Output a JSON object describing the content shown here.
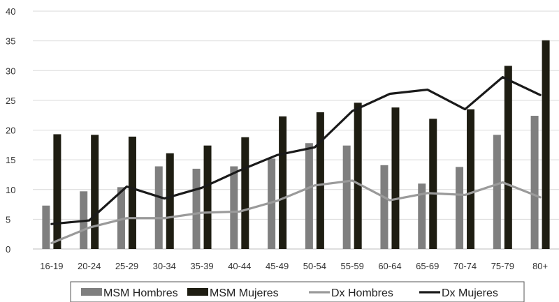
{
  "chart_data": {
    "type": "bar",
    "title": "",
    "xlabel": "",
    "ylabel": "",
    "ylim": [
      0,
      40
    ],
    "yticks": [
      0,
      5,
      10,
      15,
      20,
      25,
      30,
      35,
      40
    ],
    "grid": true,
    "legend_position": "bottom",
    "categories": [
      "16-19",
      "20-24",
      "25-29",
      "30-34",
      "35-39",
      "40-44",
      "45-49",
      "50-54",
      "55-59",
      "60-64",
      "65-69",
      "70-74",
      "75-79",
      "80+"
    ],
    "series": [
      {
        "name": "MSM Hombres",
        "kind": "bar",
        "color": "#7f7f7f",
        "values": [
          7.3,
          9.7,
          10.4,
          13.9,
          13.5,
          13.9,
          15.2,
          17.8,
          17.4,
          14.1,
          11.0,
          13.8,
          19.2,
          22.4
        ]
      },
      {
        "name": "MSM Mujeres",
        "kind": "bar",
        "color": "#1e1d12",
        "values": [
          19.3,
          19.2,
          18.9,
          16.1,
          17.4,
          18.8,
          22.3,
          23.0,
          24.6,
          23.8,
          21.9,
          23.5,
          30.8,
          35.1
        ]
      },
      {
        "name": "Dx Hombres",
        "kind": "line",
        "color": "#9a9a9a",
        "values": [
          1.0,
          3.6,
          5.2,
          5.2,
          6.1,
          6.3,
          8.1,
          10.7,
          11.5,
          8.2,
          9.4,
          9.1,
          11.2,
          8.7
        ]
      },
      {
        "name": "Dx Mujeres",
        "kind": "line",
        "color": "#1a1a1a",
        "values": [
          4.2,
          4.8,
          10.5,
          8.5,
          10.3,
          13.2,
          15.8,
          17.1,
          23.2,
          26.1,
          26.8,
          23.5,
          28.9,
          25.9
        ]
      }
    ]
  }
}
